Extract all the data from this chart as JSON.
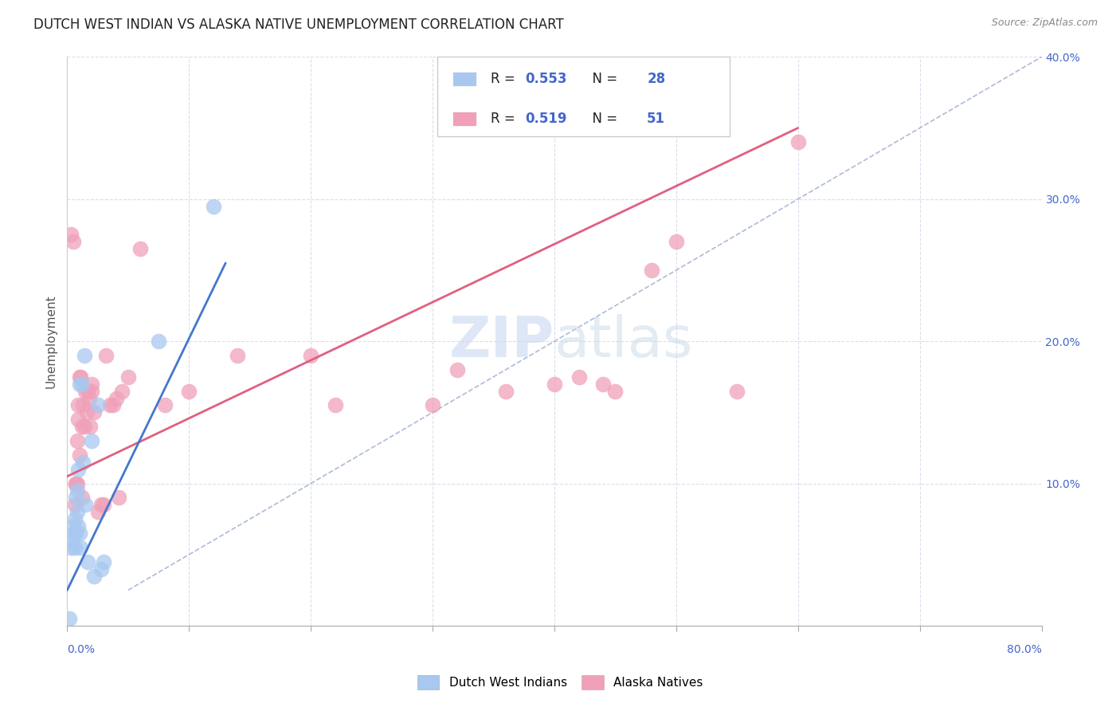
{
  "title": "DUTCH WEST INDIAN VS ALASKA NATIVE UNEMPLOYMENT CORRELATION CHART",
  "source": "Source: ZipAtlas.com",
  "ylabel": "Unemployment",
  "xlim": [
    0.0,
    0.8
  ],
  "ylim": [
    0.0,
    0.4
  ],
  "watermark_zip": "ZIP",
  "watermark_atlas": "atlas",
  "legend_blue_R": "0.553",
  "legend_blue_N": "28",
  "legend_pink_R": "0.519",
  "legend_pink_N": "51",
  "blue_scatter_color": "#A8C8F0",
  "pink_scatter_color": "#F0A0B8",
  "blue_line_color": "#4477CC",
  "pink_line_color": "#E06080",
  "dashed_line_color": "#99AACC",
  "legend_text_color": "#4466CC",
  "watermark_zip_color": "#C8D8F0",
  "watermark_atlas_color": "#C8D8E8",
  "dutch_points_x": [
    0.002,
    0.003,
    0.004,
    0.005,
    0.005,
    0.006,
    0.006,
    0.007,
    0.007,
    0.008,
    0.008,
    0.009,
    0.009,
    0.01,
    0.01,
    0.011,
    0.012,
    0.013,
    0.014,
    0.015,
    0.017,
    0.02,
    0.022,
    0.025,
    0.028,
    0.03,
    0.075,
    0.12
  ],
  "dutch_points_y": [
    0.005,
    0.055,
    0.06,
    0.065,
    0.07,
    0.055,
    0.075,
    0.065,
    0.09,
    0.08,
    0.095,
    0.07,
    0.11,
    0.065,
    0.17,
    0.055,
    0.17,
    0.115,
    0.19,
    0.085,
    0.045,
    0.13,
    0.035,
    0.155,
    0.04,
    0.045,
    0.2,
    0.295
  ],
  "alaska_points_x": [
    0.003,
    0.005,
    0.006,
    0.007,
    0.007,
    0.008,
    0.008,
    0.009,
    0.009,
    0.01,
    0.01,
    0.011,
    0.012,
    0.012,
    0.013,
    0.014,
    0.015,
    0.016,
    0.017,
    0.018,
    0.019,
    0.02,
    0.02,
    0.022,
    0.025,
    0.028,
    0.03,
    0.032,
    0.035,
    0.038,
    0.04,
    0.042,
    0.045,
    0.05,
    0.06,
    0.08,
    0.1,
    0.14,
    0.2,
    0.22,
    0.3,
    0.32,
    0.36,
    0.4,
    0.42,
    0.44,
    0.45,
    0.48,
    0.5,
    0.55,
    0.6
  ],
  "alaska_points_y": [
    0.275,
    0.27,
    0.085,
    0.1,
    0.1,
    0.1,
    0.13,
    0.145,
    0.155,
    0.12,
    0.175,
    0.175,
    0.09,
    0.14,
    0.155,
    0.14,
    0.165,
    0.15,
    0.165,
    0.16,
    0.14,
    0.17,
    0.165,
    0.15,
    0.08,
    0.085,
    0.085,
    0.19,
    0.155,
    0.155,
    0.16,
    0.09,
    0.165,
    0.175,
    0.265,
    0.155,
    0.165,
    0.19,
    0.19,
    0.155,
    0.155,
    0.18,
    0.165,
    0.17,
    0.175,
    0.17,
    0.165,
    0.25,
    0.27,
    0.165,
    0.34
  ],
  "blue_line_x": [
    0.0,
    0.13
  ],
  "blue_line_y": [
    0.025,
    0.255
  ],
  "pink_line_x": [
    0.0,
    0.6
  ],
  "pink_line_y": [
    0.105,
    0.35
  ],
  "dashed_line_x": [
    0.05,
    0.8
  ],
  "dashed_line_y": [
    0.025,
    0.4
  ]
}
